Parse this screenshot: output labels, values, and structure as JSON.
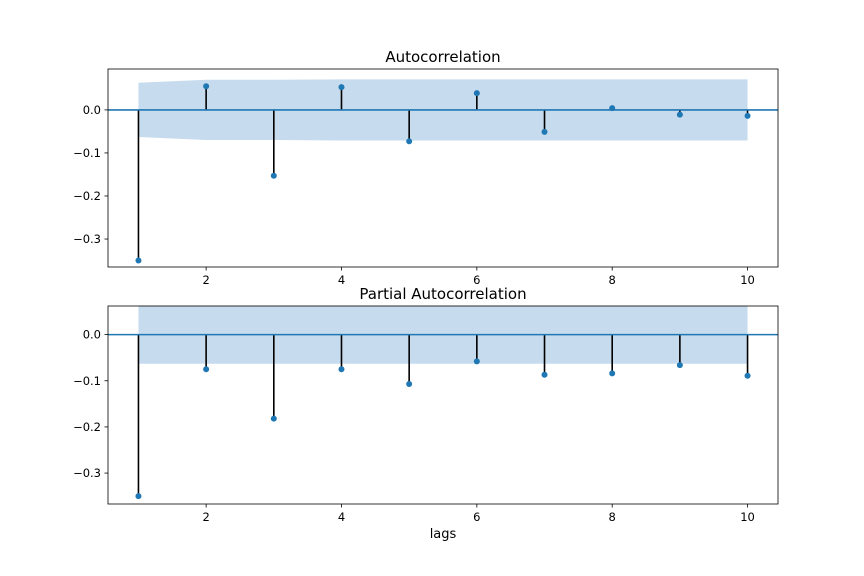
{
  "chart_data": [
    {
      "type": "stem",
      "title": "Autocorrelation",
      "xlabel": "",
      "ylabel": "",
      "x": [
        1,
        2,
        3,
        4,
        5,
        6,
        7,
        8,
        9,
        10
      ],
      "values": [
        -0.35,
        0.055,
        -0.153,
        0.053,
        -0.073,
        0.039,
        -0.051,
        0.004,
        -0.011,
        -0.014
      ],
      "confidence_band": {
        "upper": [
          0.063,
          0.07,
          0.07,
          0.071,
          0.071,
          0.071,
          0.071,
          0.071,
          0.071,
          0.071
        ],
        "lower": [
          -0.063,
          -0.07,
          -0.07,
          -0.071,
          -0.071,
          -0.071,
          -0.071,
          -0.071,
          -0.071,
          -0.071
        ]
      },
      "xlim": [
        0.55,
        10.45
      ],
      "ylim": [
        -0.365,
        0.095
      ],
      "xticks": [
        2,
        4,
        6,
        8,
        10
      ],
      "yticks": [
        -0.3,
        -0.2,
        -0.1,
        0.0
      ],
      "ytick_labels": [
        "−0.3",
        "−0.2",
        "−0.1",
        "0.0"
      ],
      "grid": false,
      "colors": {
        "marker": "#1f77b4",
        "stem": "#000000",
        "band": "#c6dbed",
        "zero_line": "#1f77b4"
      }
    },
    {
      "type": "stem",
      "title": "Partial Autocorrelation",
      "xlabel": "lags",
      "ylabel": "",
      "x": [
        1,
        2,
        3,
        4,
        5,
        6,
        7,
        8,
        9,
        10
      ],
      "values": [
        -0.35,
        -0.075,
        -0.182,
        -0.075,
        -0.107,
        -0.058,
        -0.087,
        -0.084,
        -0.066,
        -0.089
      ],
      "confidence_band": {
        "upper": [
          0.063,
          0.063,
          0.063,
          0.063,
          0.063,
          0.063,
          0.063,
          0.063,
          0.063,
          0.063
        ],
        "lower": [
          -0.063,
          -0.063,
          -0.063,
          -0.063,
          -0.063,
          -0.063,
          -0.063,
          -0.063,
          -0.063,
          -0.063
        ]
      },
      "xlim": [
        0.55,
        10.45
      ],
      "ylim": [
        -0.367,
        0.062
      ],
      "xticks": [
        2,
        4,
        6,
        8,
        10
      ],
      "yticks": [
        -0.3,
        -0.2,
        -0.1,
        0.0
      ],
      "ytick_labels": [
        "−0.3",
        "−0.2",
        "−0.1",
        "0.0"
      ],
      "grid": false,
      "colors": {
        "marker": "#1f77b4",
        "stem": "#000000",
        "band": "#c6dbed",
        "zero_line": "#1f77b4"
      }
    }
  ]
}
